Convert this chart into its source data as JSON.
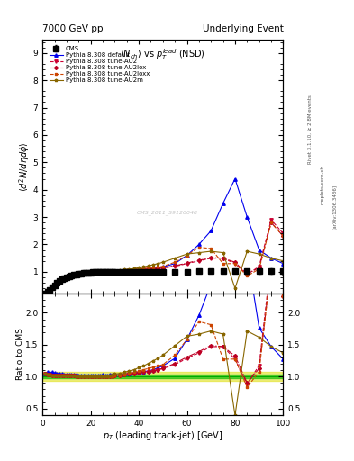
{
  "title_left": "7000 GeV pp",
  "title_right": "Underlying Event",
  "plot_title": "$\\langle N_{ch}\\rangle$ vs $p_T^{lead}$ (NSD)",
  "ylabel_main": "$\\langle d^2 N/d\\eta d\\phi\\rangle$",
  "ylabel_ratio": "Ratio to CMS",
  "xlabel": "$p_T$ (leading track-jet) [GeV]",
  "watermark": "CMS_2011_S9120048",
  "xlim": [
    0,
    100
  ],
  "ylim_main": [
    0.2,
    9.5
  ],
  "ylim_ratio": [
    0.4,
    2.3
  ],
  "yticks_main": [
    1,
    2,
    3,
    4,
    5,
    6,
    7,
    8,
    9
  ],
  "yticks_ratio": [
    0.5,
    1.0,
    1.5,
    2.0
  ],
  "band_green": [
    0.97,
    1.03
  ],
  "band_yellow": [
    0.93,
    1.07
  ],
  "series": [
    {
      "label": "CMS",
      "color": "#000000",
      "marker": "s",
      "linestyle": "none",
      "linewidth": 1.0,
      "markersize": 4,
      "is_data": true,
      "x": [
        1,
        2,
        3,
        4,
        5,
        6,
        7,
        8,
        9,
        10,
        11,
        12,
        13,
        14,
        15,
        16,
        17,
        18,
        19,
        20,
        21,
        22,
        23,
        24,
        25,
        26,
        27,
        28,
        29,
        30,
        32,
        34,
        36,
        38,
        40,
        42,
        44,
        46,
        48,
        50,
        55,
        60,
        65,
        70,
        75,
        80,
        85,
        90,
        95,
        100
      ],
      "y": [
        0.22,
        0.28,
        0.35,
        0.43,
        0.51,
        0.59,
        0.66,
        0.72,
        0.77,
        0.81,
        0.84,
        0.87,
        0.89,
        0.91,
        0.93,
        0.94,
        0.95,
        0.96,
        0.97,
        0.97,
        0.98,
        0.98,
        0.99,
        0.99,
        0.99,
        1.0,
        1.0,
        1.0,
        1.0,
        1.0,
        1.01,
        1.01,
        1.01,
        1.01,
        1.01,
        1.01,
        1.01,
        1.01,
        1.01,
        1.01,
        1.01,
        1.01,
        1.02,
        1.02,
        1.02,
        1.02,
        1.02,
        1.02,
        1.02,
        1.02
      ],
      "yerr": [
        0.01,
        0.01,
        0.01,
        0.01,
        0.01,
        0.01,
        0.01,
        0.01,
        0.01,
        0.01,
        0.01,
        0.01,
        0.01,
        0.01,
        0.01,
        0.01,
        0.01,
        0.01,
        0.01,
        0.01,
        0.01,
        0.01,
        0.01,
        0.01,
        0.01,
        0.01,
        0.01,
        0.01,
        0.01,
        0.01,
        0.02,
        0.02,
        0.02,
        0.02,
        0.02,
        0.02,
        0.02,
        0.02,
        0.02,
        0.02,
        0.03,
        0.03,
        0.04,
        0.05,
        0.06,
        0.07,
        0.08,
        0.09,
        0.1,
        0.12
      ]
    },
    {
      "label": "Pythia 8.308 default",
      "color": "#0000ee",
      "marker": "^",
      "linestyle": "-",
      "linewidth": 0.8,
      "markersize": 2.5,
      "is_data": false,
      "x": [
        1,
        2,
        3,
        4,
        5,
        6,
        7,
        8,
        9,
        10,
        11,
        12,
        13,
        14,
        15,
        16,
        17,
        18,
        19,
        20,
        21,
        22,
        23,
        24,
        25,
        26,
        27,
        28,
        29,
        30,
        32,
        34,
        36,
        38,
        40,
        42,
        44,
        46,
        48,
        50,
        55,
        60,
        65,
        70,
        75,
        80,
        85,
        90,
        95,
        100
      ],
      "y": [
        0.23,
        0.3,
        0.37,
        0.46,
        0.54,
        0.62,
        0.69,
        0.75,
        0.8,
        0.84,
        0.87,
        0.9,
        0.92,
        0.94,
        0.95,
        0.96,
        0.97,
        0.98,
        0.99,
        0.99,
        1.0,
        1.0,
        1.01,
        1.01,
        1.02,
        1.02,
        1.02,
        1.03,
        1.03,
        1.03,
        1.04,
        1.05,
        1.06,
        1.07,
        1.08,
        1.09,
        1.1,
        1.12,
        1.15,
        1.18,
        1.3,
        1.6,
        2.0,
        2.5,
        3.5,
        4.4,
        3.0,
        1.8,
        1.5,
        1.3
      ]
    },
    {
      "label": "Pythia 8.308 tune-AU2",
      "color": "#cc0033",
      "marker": "v",
      "linestyle": "--",
      "linewidth": 0.8,
      "markersize": 2.5,
      "is_data": false,
      "x": [
        1,
        2,
        3,
        4,
        5,
        6,
        7,
        8,
        9,
        10,
        11,
        12,
        13,
        14,
        15,
        16,
        17,
        18,
        19,
        20,
        21,
        22,
        23,
        24,
        25,
        26,
        27,
        28,
        29,
        30,
        32,
        34,
        36,
        38,
        40,
        42,
        44,
        46,
        48,
        50,
        55,
        60,
        65,
        70,
        75,
        80,
        85,
        90,
        95,
        100
      ],
      "y": [
        0.23,
        0.29,
        0.36,
        0.44,
        0.52,
        0.6,
        0.67,
        0.73,
        0.78,
        0.82,
        0.86,
        0.88,
        0.9,
        0.92,
        0.94,
        0.95,
        0.96,
        0.97,
        0.97,
        0.98,
        0.98,
        0.99,
        0.99,
        1.0,
        1.0,
        1.0,
        1.01,
        1.01,
        1.01,
        1.02,
        1.03,
        1.04,
        1.05,
        1.06,
        1.07,
        1.08,
        1.09,
        1.1,
        1.12,
        1.14,
        1.2,
        1.3,
        1.4,
        1.5,
        1.5,
        1.3,
        0.9,
        1.2,
        2.9,
        2.4
      ]
    },
    {
      "label": "Pythia 8.308 tune-AU2lox",
      "color": "#bb0022",
      "marker": "D",
      "linestyle": "-.",
      "linewidth": 0.8,
      "markersize": 2.0,
      "is_data": false,
      "x": [
        1,
        2,
        3,
        4,
        5,
        6,
        7,
        8,
        9,
        10,
        11,
        12,
        13,
        14,
        15,
        16,
        17,
        18,
        19,
        20,
        21,
        22,
        23,
        24,
        25,
        26,
        27,
        28,
        29,
        30,
        32,
        34,
        36,
        38,
        40,
        42,
        44,
        46,
        48,
        50,
        55,
        60,
        65,
        70,
        75,
        80,
        85,
        90,
        95,
        100
      ],
      "y": [
        0.23,
        0.29,
        0.36,
        0.44,
        0.52,
        0.6,
        0.67,
        0.73,
        0.78,
        0.82,
        0.86,
        0.88,
        0.9,
        0.92,
        0.94,
        0.95,
        0.96,
        0.97,
        0.97,
        0.98,
        0.98,
        0.99,
        0.99,
        1.0,
        1.0,
        1.0,
        1.01,
        1.01,
        1.01,
        1.02,
        1.03,
        1.04,
        1.05,
        1.06,
        1.07,
        1.08,
        1.09,
        1.1,
        1.12,
        1.14,
        1.22,
        1.32,
        1.42,
        1.52,
        1.5,
        1.35,
        0.92,
        1.15,
        2.8,
        2.3
      ]
    },
    {
      "label": "Pythia 8.308 tune-AU2loxx",
      "color": "#cc4400",
      "marker": "s",
      "linestyle": "--",
      "linewidth": 0.8,
      "markersize": 2.0,
      "is_data": false,
      "x": [
        1,
        2,
        3,
        4,
        5,
        6,
        7,
        8,
        9,
        10,
        11,
        12,
        13,
        14,
        15,
        16,
        17,
        18,
        19,
        20,
        21,
        22,
        23,
        24,
        25,
        26,
        27,
        28,
        29,
        30,
        32,
        34,
        36,
        38,
        40,
        42,
        44,
        46,
        48,
        50,
        55,
        60,
        65,
        70,
        75,
        80,
        85,
        90,
        95,
        100
      ],
      "y": [
        0.23,
        0.29,
        0.36,
        0.44,
        0.52,
        0.6,
        0.67,
        0.73,
        0.78,
        0.82,
        0.86,
        0.88,
        0.9,
        0.92,
        0.94,
        0.95,
        0.96,
        0.97,
        0.97,
        0.98,
        0.98,
        0.99,
        0.99,
        1.0,
        1.0,
        1.0,
        1.01,
        1.01,
        1.01,
        1.02,
        1.03,
        1.04,
        1.06,
        1.08,
        1.1,
        1.12,
        1.14,
        1.16,
        1.18,
        1.2,
        1.35,
        1.6,
        1.9,
        1.85,
        1.3,
        1.3,
        0.85,
        1.1,
        2.8,
        2.3
      ]
    },
    {
      "label": "Pythia 8.308 tune-AU2m",
      "color": "#886600",
      "marker": "*",
      "linestyle": "-",
      "linewidth": 0.8,
      "markersize": 2.5,
      "is_data": false,
      "x": [
        1,
        2,
        3,
        4,
        5,
        6,
        7,
        8,
        9,
        10,
        11,
        12,
        13,
        14,
        15,
        16,
        17,
        18,
        19,
        20,
        21,
        22,
        23,
        24,
        25,
        26,
        27,
        28,
        29,
        30,
        32,
        34,
        36,
        38,
        40,
        42,
        44,
        46,
        48,
        50,
        55,
        60,
        65,
        70,
        75,
        80,
        85,
        90,
        95,
        100
      ],
      "y": [
        0.23,
        0.29,
        0.36,
        0.44,
        0.52,
        0.6,
        0.67,
        0.73,
        0.78,
        0.82,
        0.86,
        0.88,
        0.9,
        0.92,
        0.94,
        0.95,
        0.96,
        0.97,
        0.97,
        0.98,
        0.98,
        0.99,
        0.99,
        1.0,
        1.0,
        1.0,
        1.01,
        1.02,
        1.03,
        1.04,
        1.06,
        1.08,
        1.1,
        1.12,
        1.15,
        1.18,
        1.22,
        1.26,
        1.3,
        1.35,
        1.5,
        1.65,
        1.7,
        1.75,
        1.7,
        0.4,
        1.75,
        1.65,
        1.5,
        1.4
      ]
    }
  ]
}
